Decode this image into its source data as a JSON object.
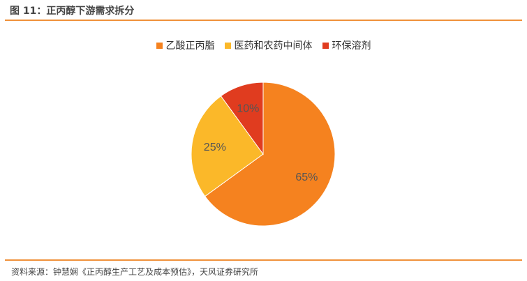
{
  "title": "图 11：正丙醇下游需求拆分",
  "source": "资料来源：钟慧娴《正丙醇生产工艺及成本预估》，天风证券研究所",
  "chart_data": {
    "type": "pie",
    "title": "",
    "legend_position": "top",
    "start_angle": "12 o'clock, clockwise",
    "categories": [
      "乙酸正丙脂",
      "医药和农药中间体",
      "环保溶剂"
    ],
    "values": [
      65,
      25,
      10
    ],
    "labels": [
      "65%",
      "25%",
      "10%"
    ],
    "colors": [
      "#F5821F",
      "#FBB829",
      "#E03C1F"
    ]
  }
}
